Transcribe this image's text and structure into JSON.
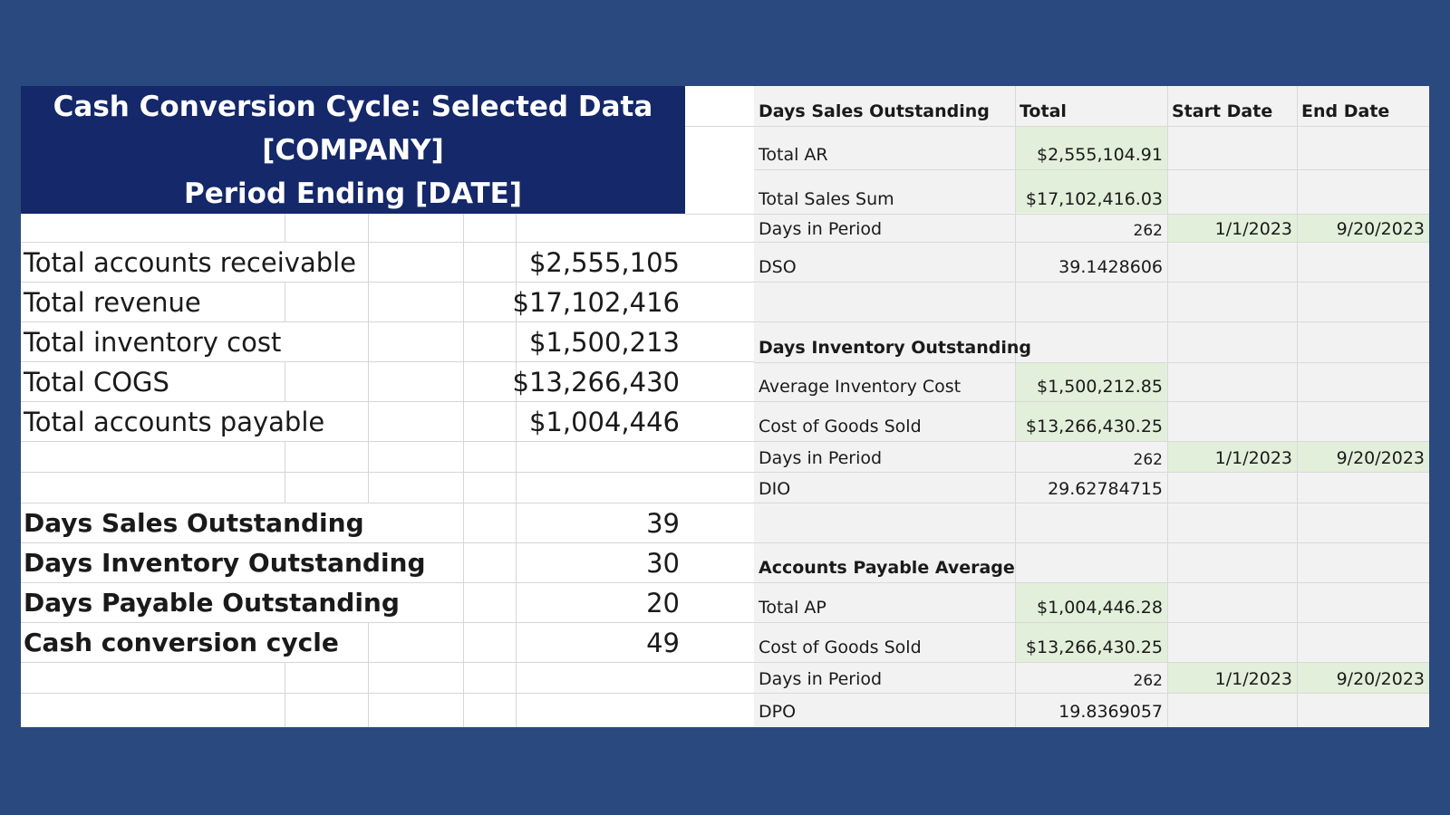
{
  "title": {
    "line1": "Cash Conversion Cycle: Selected Data",
    "line2": "[COMPANY]",
    "line3": "Period Ending [DATE]"
  },
  "summary": {
    "totals": [
      {
        "label": "Total accounts receivable",
        "value": "$2,555,105"
      },
      {
        "label": "Total revenue",
        "value": "$17,102,416"
      },
      {
        "label": "Total inventory cost",
        "value": "$1,500,213"
      },
      {
        "label": "Total COGS",
        "value": "$13,266,430"
      },
      {
        "label": "Total accounts payable",
        "value": "$1,004,446"
      }
    ],
    "metrics": [
      {
        "label": "Days Sales Outstanding",
        "value": "39"
      },
      {
        "label": "Days Inventory Outstanding",
        "value": "30"
      },
      {
        "label": "Days Payable Outstanding",
        "value": "20"
      },
      {
        "label": "Cash conversion cycle",
        "value": "49"
      }
    ]
  },
  "calc": {
    "headers": {
      "label": "Days Sales Outstanding",
      "total": "Total",
      "start": "Start Date",
      "end": "End Date"
    },
    "dso": {
      "total_ar": {
        "label": "Total AR",
        "value": "$2,555,104.91"
      },
      "total_sales": {
        "label": "Total Sales Sum",
        "value": "$17,102,416.03"
      },
      "days": {
        "label": "Days in Period",
        "value": "262",
        "start": "1/1/2023",
        "end": "9/20/2023"
      },
      "result": {
        "label": "DSO",
        "value": "39.1428606"
      }
    },
    "dio": {
      "heading": "Days Inventory Outstanding",
      "avg_inventory": {
        "label": "Average Inventory Cost",
        "value": "$1,500,212.85"
      },
      "cogs": {
        "label": "Cost of Goods Sold",
        "value": "$13,266,430.25"
      },
      "days": {
        "label": "Days in Period",
        "value": "262",
        "start": "1/1/2023",
        "end": "9/20/2023"
      },
      "result": {
        "label": "DIO",
        "value": "29.62784715"
      }
    },
    "dpo": {
      "heading": "Accounts Payable Average",
      "total_ap": {
        "label": "Total AP",
        "value": "$1,004,446.28"
      },
      "cogs": {
        "label": "Cost of Goods Sold",
        "value": "$13,266,430.25"
      },
      "days": {
        "label": "Days in Period",
        "value": "262",
        "start": "1/1/2023",
        "end": "9/20/2023"
      },
      "result": {
        "label": "DPO",
        "value": "19.8369057"
      }
    }
  },
  "colors": {
    "background": "#2a4a7f",
    "title_fill": "#14286a",
    "input_fill": "#e2efda",
    "calc_fill": "#f2f2f2"
  }
}
